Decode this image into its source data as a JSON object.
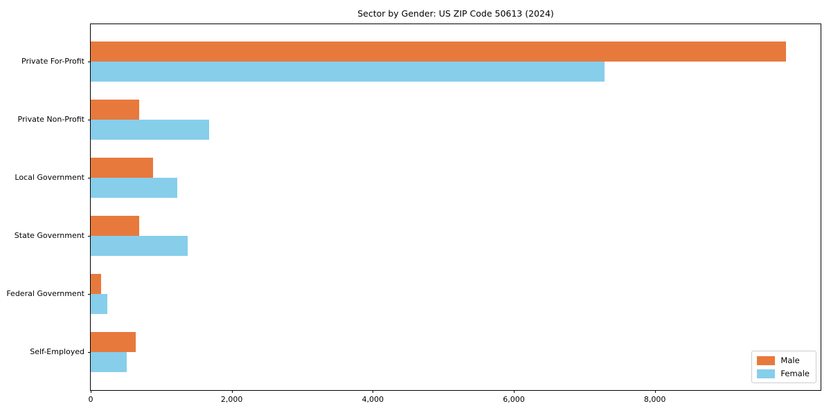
{
  "chart_data": {
    "type": "bar",
    "orientation": "horizontal",
    "title": "Sector by Gender: US ZIP Code 50613 (2024)",
    "xlabel": "",
    "ylabel": "",
    "categories": [
      "Private For-Profit",
      "Private Non-Profit",
      "Local Government",
      "State Government",
      "Federal Government",
      "Self-Employed"
    ],
    "series": [
      {
        "name": "Male",
        "color": "#E8793D",
        "values": [
          9860,
          690,
          880,
          690,
          150,
          640
        ]
      },
      {
        "name": "Female",
        "color": "#87CEEB",
        "values": [
          7290,
          1680,
          1230,
          1370,
          235,
          510
        ]
      }
    ],
    "xlim": [
      0,
      10350
    ],
    "xticks": [
      0,
      2000,
      4000,
      6000,
      8000
    ],
    "xtick_labels": [
      "0",
      "2,000",
      "4,000",
      "6,000",
      "8,000"
    ],
    "grid": false,
    "legend": {
      "position": "lower right",
      "items": [
        "Male",
        "Female"
      ]
    }
  }
}
